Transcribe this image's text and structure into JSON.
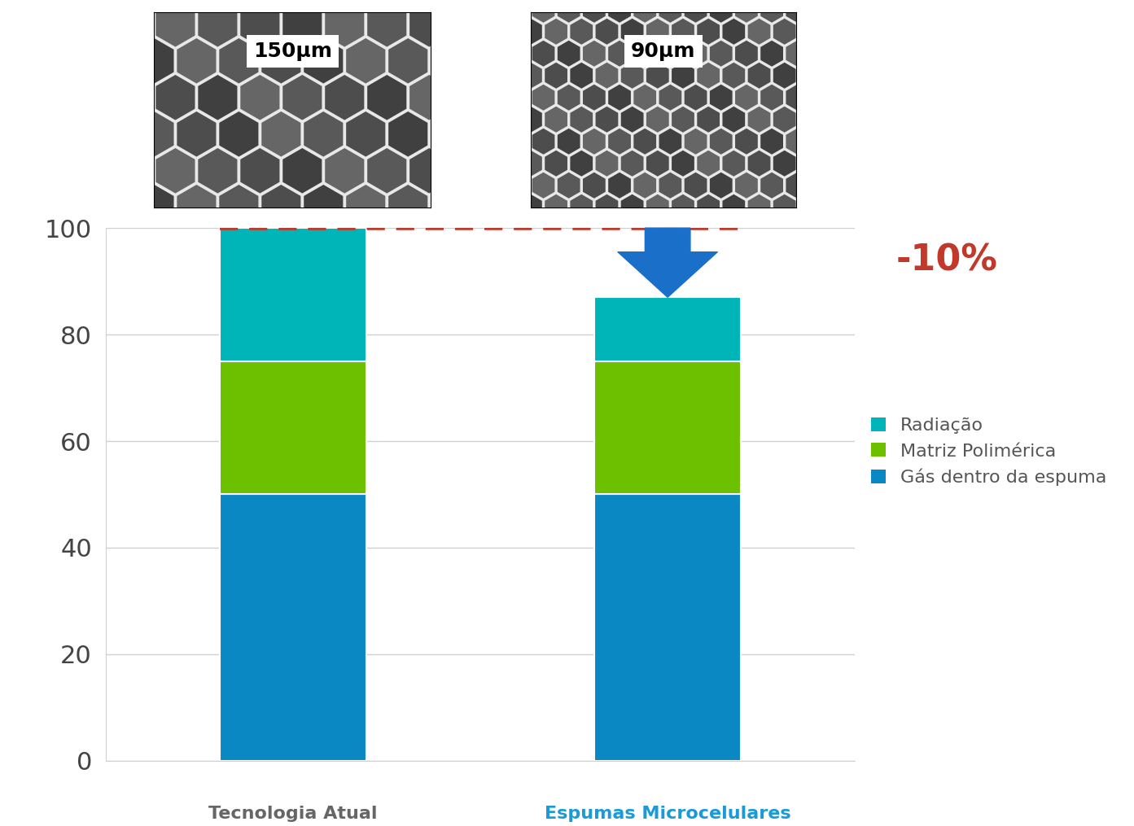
{
  "chart_data": {
    "type": "bar",
    "stacked": true,
    "categories": [
      "Tecnologia Atual",
      "Espumas Microcelulares"
    ],
    "series": [
      {
        "name": "Gás dentro da espuma",
        "color": "#0a88c4",
        "values": [
          50,
          50
        ]
      },
      {
        "name": "Matriz Polimérica",
        "color": "#6cc000",
        "values": [
          25,
          25
        ]
      },
      {
        "name": "Radiação",
        "color": "#00b5b8",
        "values": [
          25,
          12
        ]
      }
    ],
    "ylim": [
      0,
      100
    ],
    "yticks": [
      0,
      20,
      40,
      60,
      80,
      100
    ],
    "grid": true,
    "legend": "center left",
    "annotations": [
      "-10%",
      "150μm",
      "90μm"
    ]
  }
}
